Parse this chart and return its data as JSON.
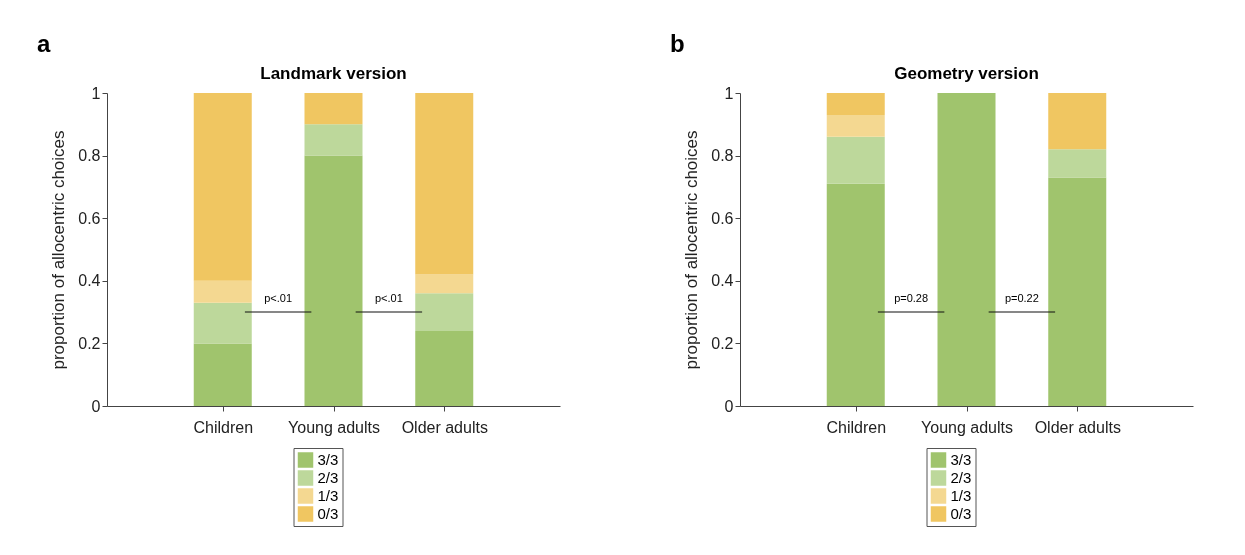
{
  "chart_data": [
    {
      "type": "bar",
      "title": "Landmark version",
      "ylabel": "proportion of allocentric choices",
      "categories": [
        "Children",
        "Young adults",
        "Older adults"
      ],
      "stacked": true,
      "ylim": [
        0,
        1
      ],
      "yticks": [
        0,
        0.2,
        0.4,
        0.6,
        0.8,
        1
      ],
      "grid": false,
      "legend": "bottom",
      "annotations": [
        "a",
        "p<.01",
        "p<.01"
      ],
      "series": [
        {
          "name": "3/3",
          "color": "#a0c46d",
          "values": [
            0.2,
            0.8,
            0.24
          ]
        },
        {
          "name": "2/3",
          "color": "#bdd89b",
          "values": [
            0.13,
            0.1,
            0.12
          ]
        },
        {
          "name": "1/3",
          "color": "#f4d891",
          "values": [
            0.07,
            0,
            0.06
          ]
        },
        {
          "name": "0/3",
          "color": "#f0c661",
          "values": [
            0.6,
            0.1,
            0.58
          ]
        }
      ]
    },
    {
      "type": "bar",
      "title": "Geometry version",
      "ylabel": "proportion of allocentric choices",
      "categories": [
        "Children",
        "Young adults",
        "Older adults"
      ],
      "stacked": true,
      "ylim": [
        0,
        1
      ],
      "yticks": [
        0,
        0.2,
        0.4,
        0.6,
        0.8,
        1
      ],
      "grid": false,
      "legend": "bottom",
      "annotations": [
        "b",
        "p=0.28",
        "p=0.22"
      ],
      "series": [
        {
          "name": "3/3",
          "color": "#a0c46d",
          "values": [
            0.71,
            1,
            0.73
          ]
        },
        {
          "name": "2/3",
          "color": "#bdd89b",
          "values": [
            0.15,
            0,
            0.09
          ]
        },
        {
          "name": "1/3",
          "color": "#f4d891",
          "values": [
            0.07,
            0,
            0
          ]
        },
        {
          "name": "0/3",
          "color": "#f0c661",
          "values": [
            0.07,
            0,
            0.18
          ]
        }
      ]
    }
  ]
}
